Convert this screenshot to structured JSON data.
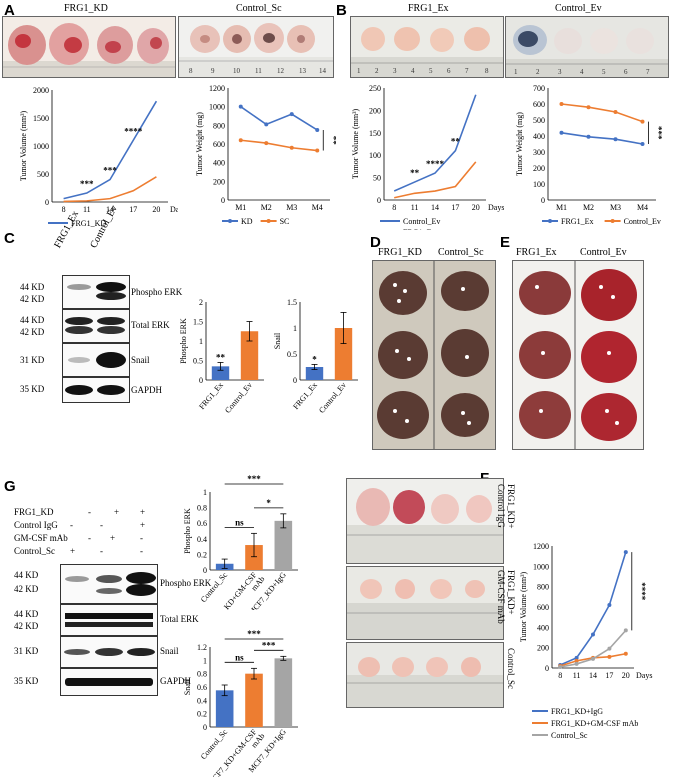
{
  "panel_labels": {
    "A": "A",
    "B": "B",
    "C": "C",
    "D": "D",
    "E": "E",
    "F": "F",
    "G": "G"
  },
  "photos": {
    "a_left": "FRG1_KD",
    "a_right": "Control_Sc",
    "b_left": "FRG1_Ex",
    "b_right": "Control_Ev",
    "d_left": "FRG1_KD",
    "d_right": "Control_Sc",
    "e_left": "FRG1_Ex",
    "e_right": "Control_Ev",
    "f_row1": "FRG1_KD+ Control IgG",
    "f_row2": "FRG1_KD+ GM-CSF mAb",
    "f_row3": "Control_Sc",
    "ruler_a_right": [
      "8",
      "9",
      "10",
      "11",
      "12",
      "13",
      "14"
    ],
    "ruler_b_left": [
      "1",
      "2",
      "3",
      "4",
      "5",
      "6",
      "7",
      "8"
    ],
    "ruler_b_right": [
      "1",
      "2",
      "3",
      "4",
      "5",
      "6",
      "7"
    ]
  },
  "blot_c": {
    "lanes": [
      "FRG1_Ex",
      "Control_Ev"
    ],
    "rows": [
      {
        "kd": "44 KD",
        "kd2": "42 KD",
        "name": "Phospho ERK"
      },
      {
        "kd": "44 KD",
        "kd2": "42 KD",
        "name": "Total ERK"
      },
      {
        "kd": "31 KD",
        "kd2": "",
        "name": "Snail"
      },
      {
        "kd": "35 KD",
        "kd2": "",
        "name": "GAPDH"
      }
    ]
  },
  "blot_g": {
    "conditions": [
      {
        "name": "FRG1_KD",
        "marks": [
          "-",
          "+",
          "+"
        ]
      },
      {
        "name": "Control IgG",
        "marks": [
          "-",
          "-",
          "+"
        ]
      },
      {
        "name": "GM-CSF mAb",
        "marks": [
          "-",
          "+",
          "-"
        ]
      },
      {
        "name": "Control_Sc",
        "marks": [
          "+",
          "-",
          "-"
        ]
      }
    ],
    "rows": [
      {
        "kd": "44 KD",
        "kd2": "42 KD",
        "name": "Phospho ERK"
      },
      {
        "kd": "44 KD",
        "kd2": "42 KD",
        "name": "Total ERK"
      },
      {
        "kd": "31 KD",
        "kd2": "",
        "name": "Snail"
      },
      {
        "kd": "35 KD",
        "kd2": "",
        "name": "GAPDH"
      }
    ]
  },
  "chart_data": [
    {
      "id": "A_volume",
      "type": "line",
      "title": "",
      "xlabel": "Days",
      "ylabel": "Tumor Volume (mm³)",
      "categories": [
        "8",
        "11",
        "14",
        "17",
        "20"
      ],
      "ylim": [
        0,
        2000
      ],
      "yticks": [
        0,
        500,
        1000,
        1500,
        2000
      ],
      "series": [
        {
          "name": "FRG1_KD",
          "color": "#4472C4",
          "values": [
            60,
            160,
            400,
            1100,
            1800
          ]
        },
        {
          "name": "Control_Sc",
          "color": "#ED7D31",
          "values": [
            10,
            20,
            60,
            200,
            450
          ]
        }
      ],
      "annotations": [
        {
          "text": "***",
          "at": 1
        },
        {
          "text": "***",
          "at": 2
        },
        {
          "text": "****",
          "at": 3
        }
      ],
      "legend": "bottom"
    },
    {
      "id": "A_weight",
      "type": "line",
      "title": "",
      "xlabel": "",
      "ylabel": "Tumor Weight (mg)",
      "categories": [
        "M1",
        "M2",
        "M3",
        "M4"
      ],
      "ylim": [
        0,
        1200
      ],
      "yticks": [
        0,
        200,
        400,
        600,
        800,
        1000,
        1200
      ],
      "series": [
        {
          "name": "KD",
          "color": "#4472C4",
          "values": [
            1000,
            810,
            920,
            750
          ]
        },
        {
          "name": "SC",
          "color": "#ED7D31",
          "values": [
            640,
            610,
            560,
            530
          ]
        }
      ],
      "annotations": [
        {
          "text": "**",
          "at": "bracket"
        }
      ],
      "legend": "bottom"
    },
    {
      "id": "B_volume",
      "type": "line",
      "title": "",
      "xlabel": "Days",
      "ylabel": "Tumor Volume (mm³)",
      "categories": [
        "8",
        "11",
        "14",
        "17",
        "20"
      ],
      "ylim": [
        0,
        250
      ],
      "yticks": [
        0,
        50,
        100,
        150,
        200,
        250
      ],
      "series": [
        {
          "name": "Control_Ev",
          "color": "#4472C4",
          "values": [
            20,
            40,
            60,
            110,
            235
          ]
        },
        {
          "name": "FRG1_Ex",
          "color": "#ED7D31",
          "values": [
            5,
            15,
            20,
            30,
            85
          ]
        }
      ],
      "annotations": [
        {
          "text": "**",
          "at": 1
        },
        {
          "text": "****",
          "at": 2
        },
        {
          "text": "**",
          "at": 3
        }
      ],
      "legend": "bottom"
    },
    {
      "id": "B_weight",
      "type": "line",
      "title": "",
      "xlabel": "",
      "ylabel": "Tumor Weight (mg)",
      "categories": [
        "M1",
        "M2",
        "M3",
        "M4"
      ],
      "ylim": [
        0,
        700
      ],
      "yticks": [
        0,
        100,
        200,
        300,
        400,
        500,
        600,
        700
      ],
      "series": [
        {
          "name": "FRG1_Ex",
          "color": "#4472C4",
          "values": [
            420,
            395,
            380,
            350
          ]
        },
        {
          "name": "Control_Ev",
          "color": "#ED7D31",
          "values": [
            600,
            580,
            550,
            490
          ]
        }
      ],
      "annotations": [
        {
          "text": "***",
          "at": "bracket"
        }
      ],
      "legend": "bottom"
    },
    {
      "id": "C_phospho",
      "type": "bar",
      "ylabel": "Phospho ERK",
      "categories": [
        "FRG1_Ex",
        "Control_Ev"
      ],
      "ylim": [
        0,
        2
      ],
      "yticks": [
        0,
        0.5,
        1,
        1.5,
        2
      ],
      "values": [
        0.35,
        1.25
      ],
      "errors": [
        0.1,
        0.25
      ],
      "colors": [
        "#4472C4",
        "#ED7D31"
      ],
      "annotations": [
        "**",
        ""
      ]
    },
    {
      "id": "C_snail",
      "type": "bar",
      "ylabel": "Snail",
      "categories": [
        "FRG1_Ex",
        "Control_Ev"
      ],
      "ylim": [
        0,
        1.5
      ],
      "yticks": [
        0,
        0.5,
        1,
        1.5
      ],
      "values": [
        0.25,
        1.0
      ],
      "errors": [
        0.05,
        0.3
      ],
      "colors": [
        "#4472C4",
        "#ED7D31"
      ],
      "annotations": [
        "*",
        ""
      ]
    },
    {
      "id": "G_phospho",
      "type": "bar",
      "ylabel": "Phospho ERK",
      "categories": [
        "Control_Sc",
        "MCF7_KD+GM-CSF mAb",
        "MCF7_KD+IgG"
      ],
      "ylim": [
        0,
        1
      ],
      "yticks": [
        0,
        0.2,
        0.4,
        0.6,
        0.8,
        1
      ],
      "values": [
        0.08,
        0.32,
        0.63
      ],
      "errors": [
        0.06,
        0.15,
        0.09
      ],
      "colors": [
        "#4472C4",
        "#ED7D31",
        "#A5A5A5"
      ],
      "brackets": [
        {
          "text": "ns",
          "from": 0,
          "to": 1
        },
        {
          "text": "*",
          "from": 1,
          "to": 2
        },
        {
          "text": "***",
          "from": 0,
          "to": 2
        }
      ]
    },
    {
      "id": "G_snail",
      "type": "bar",
      "ylabel": "Snail",
      "categories": [
        "Control_Sc",
        "MCF7_KD+GM-CSF mAb",
        "MCF7_KD+IgG"
      ],
      "ylim": [
        0,
        1.2
      ],
      "yticks": [
        0,
        0.2,
        0.4,
        0.6,
        0.8,
        1,
        1.2
      ],
      "values": [
        0.55,
        0.8,
        1.03
      ],
      "errors": [
        0.08,
        0.08,
        0.03
      ],
      "colors": [
        "#4472C4",
        "#ED7D31",
        "#A5A5A5"
      ],
      "brackets": [
        {
          "text": "ns",
          "from": 0,
          "to": 1
        },
        {
          "text": "***",
          "from": 1,
          "to": 2
        },
        {
          "text": "***",
          "from": 0,
          "to": 2
        }
      ]
    },
    {
      "id": "F_volume",
      "type": "line",
      "xlabel": "Days",
      "ylabel": "Tumor Volume (mm³)",
      "categories": [
        "8",
        "11",
        "14",
        "17",
        "20"
      ],
      "ylim": [
        0,
        1200
      ],
      "yticks": [
        0,
        200,
        400,
        600,
        800,
        1000,
        1200
      ],
      "series": [
        {
          "name": "FRG1_KD+IgG",
          "color": "#4472C4",
          "values": [
            30,
            100,
            330,
            620,
            1140
          ]
        },
        {
          "name": "FRG1_KD+GM-CSF mAb",
          "color": "#ED7D31",
          "values": [
            20,
            70,
            100,
            110,
            140
          ]
        },
        {
          "name": "Control_Sc",
          "color": "#A5A5A5",
          "values": [
            10,
            40,
            90,
            190,
            370
          ]
        }
      ],
      "annotations": [
        {
          "text": "****",
          "at": "bracket"
        }
      ],
      "legend": "bottom"
    }
  ]
}
